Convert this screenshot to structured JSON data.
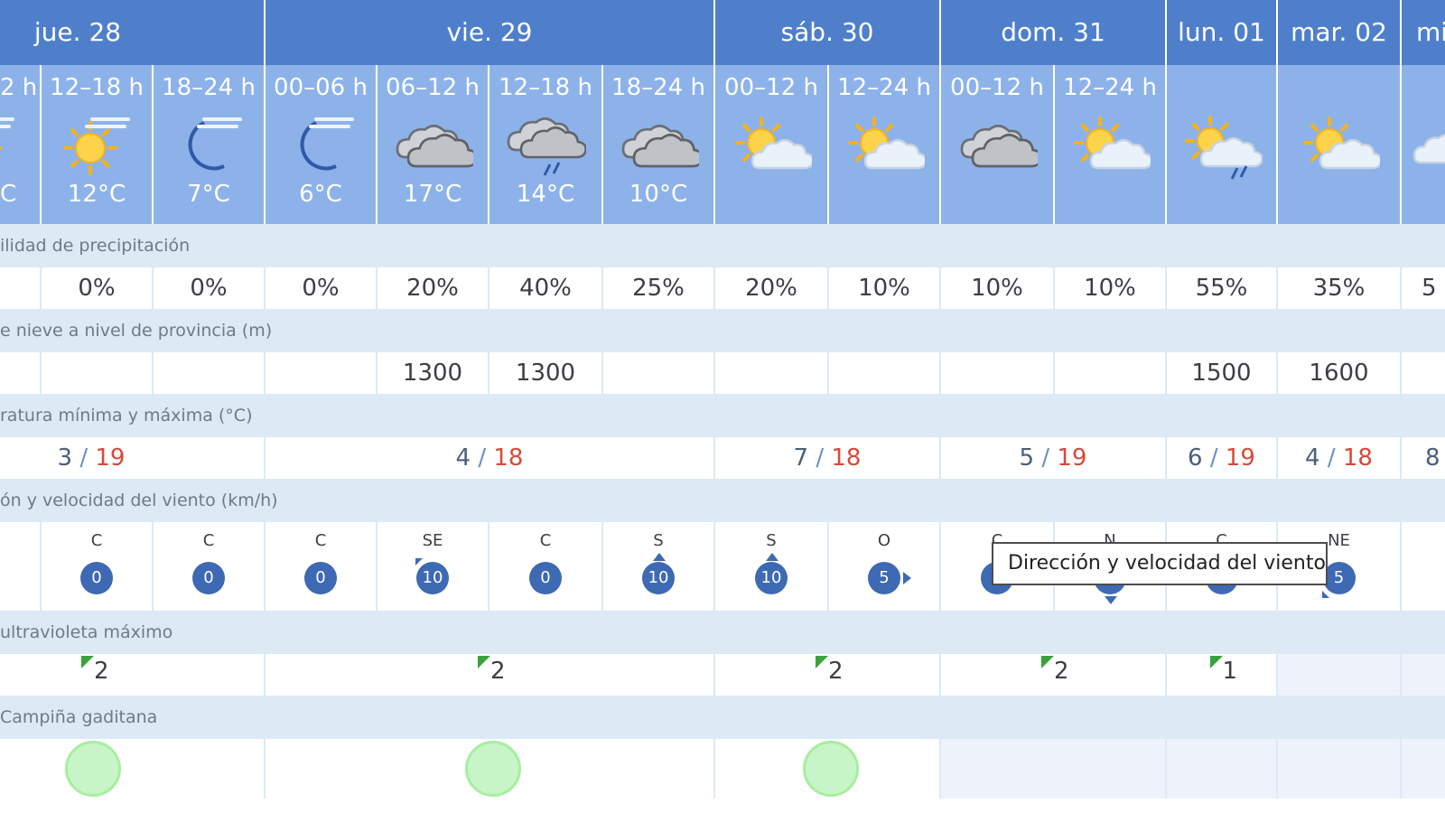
{
  "days": [
    {
      "label": "jue. 28"
    },
    {
      "label": "vie. 29"
    },
    {
      "label": "sáb. 30"
    },
    {
      "label": "dom. 31"
    },
    {
      "label": "lun. 01"
    },
    {
      "label": "mar. 02"
    },
    {
      "label": "mi"
    }
  ],
  "periods": [
    {
      "range": "2 h",
      "icon": "sun-haze-icon",
      "temp": "C"
    },
    {
      "range": "12–18 h",
      "icon": "sun-haze-icon",
      "temp": "12°C"
    },
    {
      "range": "18–24 h",
      "icon": "moon-haze-icon",
      "temp": "7°C"
    },
    {
      "range": "00–06 h",
      "icon": "moon-haze-icon",
      "temp": "6°C"
    },
    {
      "range": "06–12 h",
      "icon": "cloudy-icon",
      "temp": "17°C"
    },
    {
      "range": "12–18 h",
      "icon": "cloud-rain-icon",
      "temp": "14°C"
    },
    {
      "range": "18–24 h",
      "icon": "cloudy-icon",
      "temp": "10°C"
    },
    {
      "range": "00–12 h",
      "icon": "sun-cloud-icon",
      "temp": ""
    },
    {
      "range": "12–24 h",
      "icon": "sun-cloud-icon",
      "temp": ""
    },
    {
      "range": "00–12 h",
      "icon": "cloudy-icon",
      "temp": ""
    },
    {
      "range": "12–24 h",
      "icon": "sun-cloud-icon",
      "temp": ""
    },
    {
      "range": "",
      "icon": "sun-cloud-rain-icon",
      "temp": ""
    },
    {
      "range": "",
      "icon": "sun-cloud-icon",
      "temp": ""
    },
    {
      "range": "",
      "icon": "cloud-icon",
      "temp": ""
    }
  ],
  "sections": {
    "precip_label": "ilidad de precipitación",
    "snow_label": "e nieve a nivel de provincia (m)",
    "temp_label": "ratura mínima y máxima (°C)",
    "wind_label": "ón y velocidad del viento (km/h)",
    "uv_label": "ultravioleta máximo",
    "aq_label": "Campiña gaditana"
  },
  "precip": [
    "",
    "0%",
    "0%",
    "0%",
    "20%",
    "40%",
    "25%",
    "20%",
    "10%",
    "10%",
    "10%",
    "55%",
    "35%",
    "5"
  ],
  "snow": [
    "",
    "",
    "",
    "",
    "1300",
    "1300",
    "",
    "",
    "",
    "",
    "",
    "1500",
    "1600",
    ""
  ],
  "temps": [
    {
      "min": "3",
      "max": "19"
    },
    {
      "min": "4",
      "max": "18"
    },
    {
      "min": "7",
      "max": "18"
    },
    {
      "min": "5",
      "max": "19"
    },
    {
      "min": "6",
      "max": "19"
    },
    {
      "min": "4",
      "max": "18"
    },
    {
      "min": "8",
      "max": ""
    }
  ],
  "wind": [
    {
      "dir": "",
      "speed": "",
      "arrow": "none"
    },
    {
      "dir": "C",
      "speed": "0",
      "arrow": "none"
    },
    {
      "dir": "C",
      "speed": "0",
      "arrow": "none"
    },
    {
      "dir": "C",
      "speed": "0",
      "arrow": "none"
    },
    {
      "dir": "SE",
      "speed": "10",
      "arrow": "nw"
    },
    {
      "dir": "C",
      "speed": "0",
      "arrow": "none"
    },
    {
      "dir": "S",
      "speed": "10",
      "arrow": "up"
    },
    {
      "dir": "S",
      "speed": "10",
      "arrow": "up"
    },
    {
      "dir": "O",
      "speed": "5",
      "arrow": "right"
    },
    {
      "dir": "C",
      "speed": "",
      "arrow": "none"
    },
    {
      "dir": "N",
      "speed": "",
      "arrow": "down"
    },
    {
      "dir": "C",
      "speed": "",
      "arrow": "none"
    },
    {
      "dir": "NE",
      "speed": "5",
      "arrow": "sw"
    },
    {
      "dir": "",
      "speed": "",
      "arrow": "none"
    }
  ],
  "uv": [
    "2",
    "2",
    "2",
    "2",
    "1",
    "",
    ""
  ],
  "tooltip": "Dirección y velocidad del viento",
  "colors": {
    "day_header": "#4f7fca",
    "period_bg": "#8db2ea",
    "label_bg": "#dde9f5",
    "wind_circle": "#3e69b3",
    "temp_max": "#d64a3a",
    "uv_flag": "#3aa23a",
    "air_quality_good": "#c8f5c8"
  }
}
